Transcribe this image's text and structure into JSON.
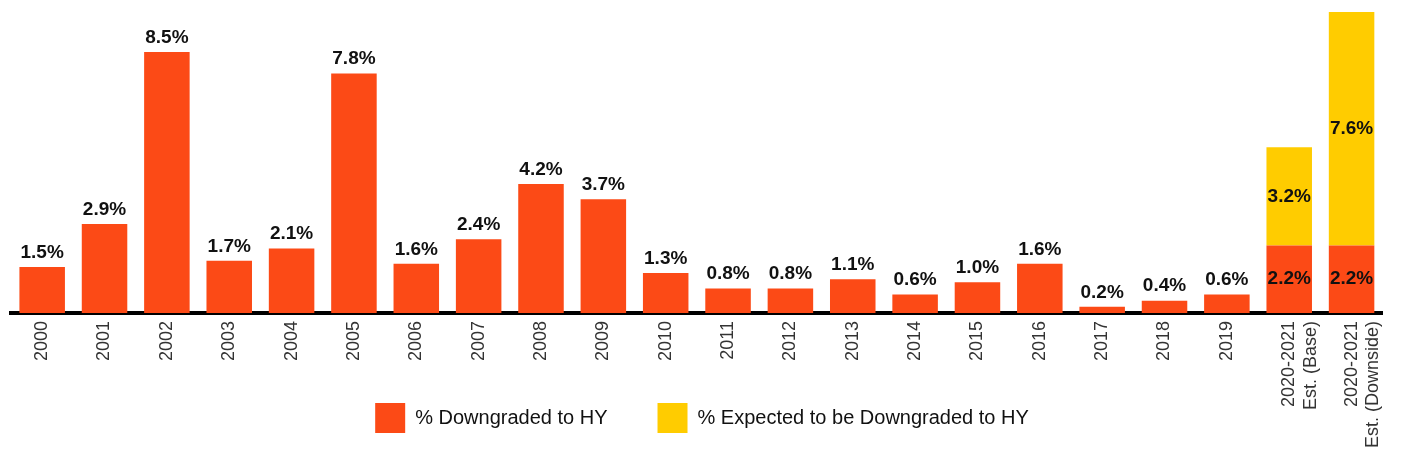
{
  "chart_data": {
    "type": "bar",
    "stacked": true,
    "categories": [
      "2000",
      "2001",
      "2002",
      "2003",
      "2004",
      "2005",
      "2006",
      "2007",
      "2008",
      "2009",
      "2010",
      "2011",
      "2012",
      "2013",
      "2014",
      "2015",
      "2016",
      "2017",
      "2018",
      "2019",
      "2020-2021 Est. (Base)",
      "2020-2021 Est. (Downside)"
    ],
    "series": [
      {
        "name": "% Downgraded to HY",
        "color": "#fc4a16",
        "values": [
          1.5,
          2.9,
          8.5,
          1.7,
          2.1,
          7.8,
          1.6,
          2.4,
          4.2,
          3.7,
          1.3,
          0.8,
          0.8,
          1.1,
          0.6,
          1.0,
          1.6,
          0.2,
          0.4,
          0.6,
          2.2,
          2.2
        ],
        "value_labels": [
          "1.5%",
          "2.9%",
          "8.5%",
          "1.7%",
          "2.1%",
          "7.8%",
          "1.6%",
          "2.4%",
          "4.2%",
          "3.7%",
          "1.3%",
          "0.8%",
          "0.8%",
          "1.1%",
          "0.6%",
          "1.0%",
          "1.6%",
          "0.2%",
          "0.4%",
          "0.6%",
          "2.2%",
          "2.2%"
        ]
      },
      {
        "name": "% Expected to be Downgraded to HY",
        "color": "#ffcc00",
        "values": [
          null,
          null,
          null,
          null,
          null,
          null,
          null,
          null,
          null,
          null,
          null,
          null,
          null,
          null,
          null,
          null,
          null,
          null,
          null,
          null,
          3.2,
          7.6
        ],
        "value_labels": [
          null,
          null,
          null,
          null,
          null,
          null,
          null,
          null,
          null,
          null,
          null,
          null,
          null,
          null,
          null,
          null,
          null,
          null,
          null,
          null,
          "3.2%",
          "7.6%"
        ]
      }
    ],
    "legend": "bottom",
    "grid": false
  }
}
